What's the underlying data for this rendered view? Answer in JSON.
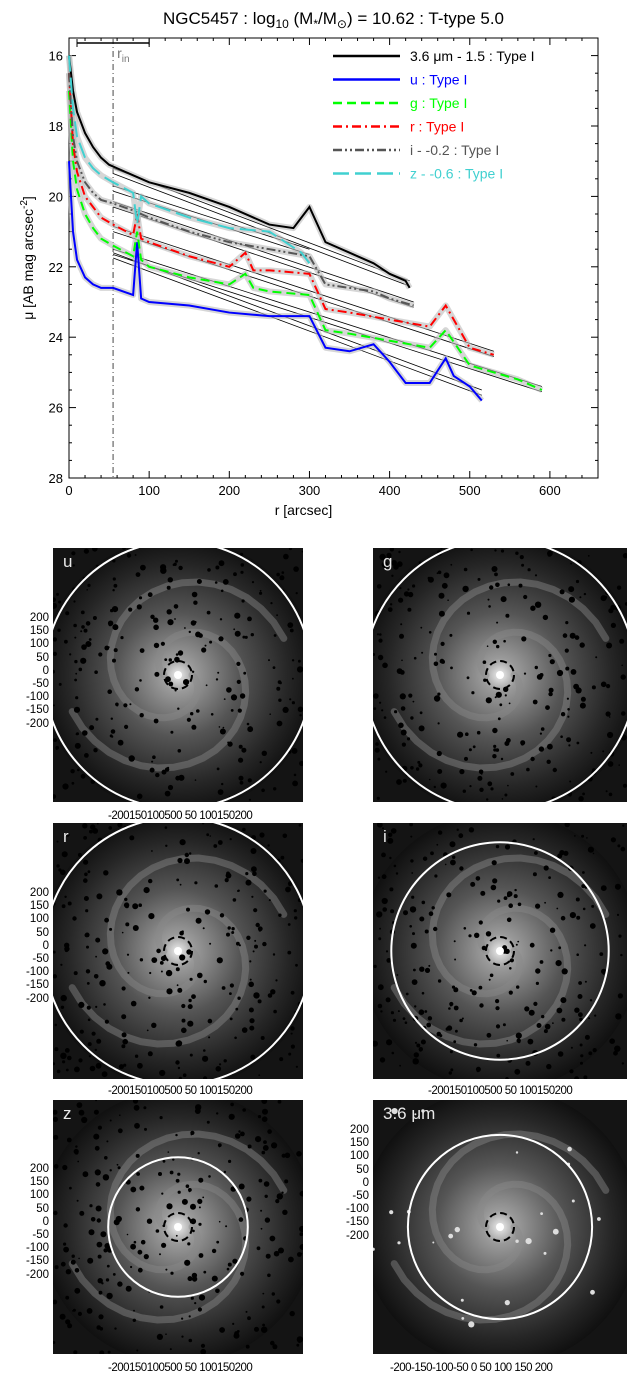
{
  "chart_data": [
    {
      "type": "line",
      "title": "NGC5457 : log10 (M*/M⊙) = 10.62 : T-type 5.0",
      "title_parts": {
        "pre": "NGC5457 : log",
        "sub": "10",
        "mid": " (M",
        "star": "*",
        "sun": "/M",
        "sunsym": "⊙",
        "post": ") = 10.62 : T-type 5.0"
      },
      "xlabel": "r [arcsec]",
      "ylabel": "μ [AB mag arcsec⁻²]",
      "ylabel_parts": {
        "main": "μ [AB mag arcsec",
        "sup": "-2",
        "end": "]"
      },
      "xlim": [
        0,
        660
      ],
      "ylim": [
        28,
        15.5
      ],
      "y_inverted": true,
      "xticks": [
        0,
        100,
        200,
        300,
        400,
        500,
        600
      ],
      "yticks": [
        16,
        18,
        20,
        22,
        24,
        26,
        28
      ],
      "r_in": 55,
      "r_in_label": "r",
      "r_in_sub": "in",
      "scale_bar": [
        10,
        100
      ],
      "legend_position": "top-right",
      "series": [
        {
          "name": "3.6 μm - 1.5 : Type I",
          "color": "#000000",
          "dash": "solid",
          "x": [
            0,
            5,
            10,
            20,
            30,
            40,
            50,
            60,
            80,
            100,
            150,
            200,
            250,
            280,
            300,
            320,
            350,
            380,
            400,
            420,
            425
          ],
          "y": [
            16.0,
            17.0,
            17.6,
            18.2,
            18.6,
            18.9,
            19.1,
            19.2,
            19.4,
            19.6,
            19.9,
            20.3,
            20.8,
            20.9,
            20.3,
            21.3,
            21.6,
            21.9,
            22.2,
            22.4,
            22.6
          ],
          "fit": [
            [
              55,
              19.2,
              425,
              22.4
            ],
            [
              55,
              19.35,
              425,
              22.55
            ]
          ]
        },
        {
          "name": "u : Type I",
          "color": "#0000ff",
          "dash": "solid",
          "x": [
            0,
            5,
            10,
            20,
            30,
            40,
            55,
            80,
            85,
            90,
            100,
            150,
            200,
            250,
            300,
            320,
            350,
            380,
            400,
            420,
            450,
            470,
            480,
            500,
            515
          ],
          "y": [
            19.0,
            21.0,
            21.8,
            22.3,
            22.5,
            22.6,
            22.6,
            22.8,
            21.3,
            22.9,
            23.0,
            23.1,
            23.3,
            23.4,
            23.4,
            24.3,
            24.4,
            24.2,
            24.7,
            25.3,
            25.3,
            24.6,
            25.1,
            25.4,
            25.8
          ],
          "fit": [
            [
              55,
              21.6,
              515,
              25.5
            ],
            [
              55,
              21.75,
              515,
              25.65
            ]
          ]
        },
        {
          "name": "g : Type I",
          "color": "#00ff00",
          "dash": "dashed",
          "x": [
            0,
            5,
            10,
            20,
            30,
            40,
            55,
            80,
            85,
            90,
            100,
            150,
            200,
            220,
            230,
            250,
            300,
            320,
            350,
            400,
            450,
            470,
            500,
            530,
            560,
            590
          ],
          "y": [
            17.0,
            19.0,
            19.8,
            20.5,
            20.9,
            21.2,
            21.4,
            21.7,
            21.0,
            21.8,
            22.0,
            22.3,
            22.5,
            22.2,
            22.6,
            22.7,
            22.8,
            23.8,
            23.9,
            24.1,
            24.3,
            23.8,
            24.8,
            25.0,
            25.2,
            25.5
          ],
          "fit": [
            [
              55,
              21.5,
              590,
              25.4
            ],
            [
              55,
              21.65,
              590,
              25.55
            ]
          ]
        },
        {
          "name": "r : Type I",
          "color": "#ff0000",
          "dash": "dashdot",
          "x": [
            0,
            5,
            10,
            20,
            30,
            40,
            55,
            80,
            85,
            90,
            100,
            150,
            200,
            220,
            230,
            250,
            300,
            320,
            350,
            400,
            450,
            470,
            500,
            530
          ],
          "y": [
            16.5,
            18.5,
            19.3,
            20.0,
            20.3,
            20.6,
            20.8,
            21.1,
            20.5,
            21.2,
            21.3,
            21.7,
            22.0,
            21.6,
            22.1,
            22.1,
            22.2,
            23.2,
            23.3,
            23.5,
            23.7,
            23.1,
            24.3,
            24.5
          ],
          "fit": [
            [
              55,
              20.85,
              530,
              24.4
            ],
            [
              55,
              21.0,
              530,
              24.55
            ]
          ]
        },
        {
          "name": "i - -0.2 : Type I",
          "color": "#555555",
          "dash": "dashdotdot",
          "x": [
            0,
            5,
            10,
            20,
            30,
            40,
            55,
            80,
            100,
            150,
            200,
            250,
            300,
            320,
            350,
            380,
            400,
            430
          ],
          "y": [
            16.5,
            18.3,
            19.0,
            19.6,
            19.9,
            20.1,
            20.2,
            20.4,
            20.6,
            21.0,
            21.3,
            21.5,
            21.7,
            22.5,
            22.6,
            22.7,
            22.9,
            23.1
          ],
          "fit": [
            [
              55,
              20.15,
              430,
              23.0
            ],
            [
              55,
              20.3,
              430,
              23.15
            ]
          ]
        },
        {
          "name": "z - -0.6 : Type I",
          "color": "#40d0d0",
          "dash": "longdash",
          "x": [
            0,
            5,
            10,
            20,
            30,
            40,
            55,
            80,
            85,
            90,
            100,
            150,
            200,
            250,
            270,
            290,
            300
          ],
          "y": [
            16.0,
            17.5,
            18.3,
            18.9,
            19.2,
            19.4,
            19.6,
            19.9,
            20.8,
            20.0,
            20.2,
            20.6,
            20.9,
            21.0,
            21.3,
            21.6,
            21.9
          ],
          "fit": [
            [
              55,
              19.7,
              300,
              21.5
            ],
            [
              55,
              19.85,
              300,
              21.65
            ]
          ]
        }
      ]
    },
    {
      "type": "image",
      "panels": [
        {
          "label": "u",
          "circle_scale": 1.15,
          "yticks": [
            "200",
            "150",
            "100",
            "50",
            "0",
            "-50",
            "-100",
            "-150",
            "-200"
          ],
          "xticks": "-200150100500 50 100150200"
        },
        {
          "label": "g",
          "circle_scale": 1.15,
          "yticks": [],
          "xticks": ""
        },
        {
          "label": "r",
          "circle_scale": 1.15,
          "yticks": [
            "200",
            "150",
            "100",
            "50",
            "0",
            "-50",
            "-100",
            "-150",
            "-200"
          ],
          "xticks": "-200150100500 50 100150200"
        },
        {
          "label": "i",
          "circle_scale": 0.92,
          "yticks": [],
          "xticks": "-200150100500 50 100150200"
        },
        {
          "label": "z",
          "circle_scale": 0.6,
          "yticks": [
            "200",
            "150",
            "100",
            "50",
            "0",
            "-50",
            "-100",
            "-150",
            "-200"
          ],
          "xticks": "-200150100500 50 100150200"
        },
        {
          "label": "3.6 μm",
          "circle_scale": 0.78,
          "yticks": [
            "200",
            "150",
            "100",
            "50",
            "0",
            "-50",
            "-100",
            "-150",
            "-200"
          ],
          "xticks": "-200-150-100-50  0  50 100 150 200"
        }
      ]
    }
  ]
}
